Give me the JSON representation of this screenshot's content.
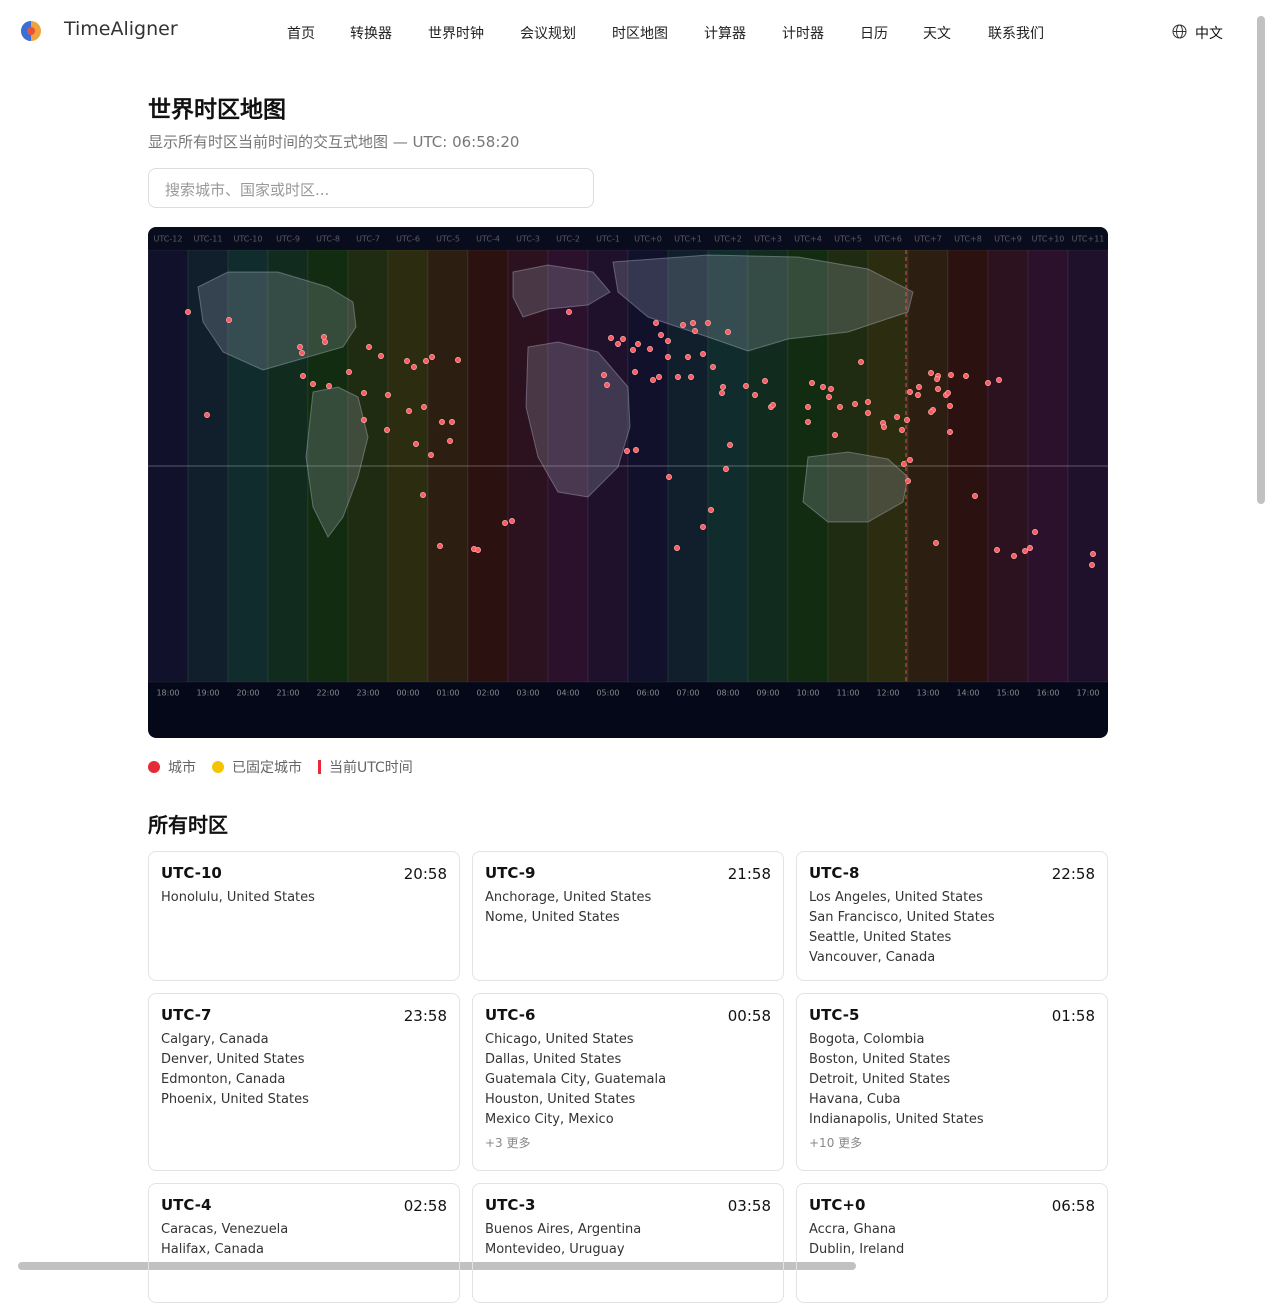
{
  "header": {
    "logo": "TimeAligner",
    "nav": [
      "首页",
      "转换器",
      "世界时钟",
      "会议规划",
      "时区地图",
      "计算器",
      "计时器",
      "日历",
      "天文",
      "联系我们"
    ],
    "language": "中文"
  },
  "page": {
    "title": "世界时区地图",
    "subtitle": "显示所有时区当前时间的交互式地图 — UTC: 06:58:20",
    "search_placeholder": "搜索城市、国家或时区..."
  },
  "map": {
    "zones": [
      "UTC-12",
      "UTC-11",
      "UTC-10",
      "UTC-9",
      "UTC-8",
      "UTC-7",
      "UTC-6",
      "UTC-5",
      "UTC-4",
      "UTC-3",
      "UTC-2",
      "UTC-1",
      "UTC+0",
      "UTC+1",
      "UTC+2",
      "UTC+3",
      "UTC+4",
      "UTC+5",
      "UTC+6",
      "UTC+7",
      "UTC+8",
      "UTC+9",
      "UTC+10",
      "UTC+11"
    ],
    "times": [
      "18:00",
      "19:00",
      "20:00",
      "21:00",
      "22:00",
      "23:00",
      "00:00",
      "01:00",
      "02:00",
      "03:00",
      "04:00",
      "05:00",
      "06:00",
      "07:00",
      "08:00",
      "09:00",
      "10:00",
      "11:00",
      "12:00",
      "13:00",
      "14:00",
      "15:00",
      "16:00",
      "17:00"
    ]
  },
  "legend": [
    "城市",
    "已固定城市",
    "当前UTC时间"
  ],
  "section_title": "所有时区",
  "cards": [
    {
      "zone": "UTC-10",
      "time": "20:58",
      "cities": [
        "Honolulu, United States"
      ]
    },
    {
      "zone": "UTC-9",
      "time": "21:58",
      "cities": [
        "Anchorage, United States",
        "Nome, United States"
      ]
    },
    {
      "zone": "UTC-8",
      "time": "22:58",
      "cities": [
        "Los Angeles, United States",
        "San Francisco, United States",
        "Seattle, United States",
        "Vancouver, Canada"
      ]
    },
    {
      "zone": "UTC-7",
      "time": "23:58",
      "cities": [
        "Calgary, Canada",
        "Denver, United States",
        "Edmonton, Canada",
        "Phoenix, United States"
      ]
    },
    {
      "zone": "UTC-6",
      "time": "00:58",
      "cities": [
        "Chicago, United States",
        "Dallas, United States",
        "Guatemala City, Guatemala",
        "Houston, United States",
        "Mexico City, Mexico"
      ],
      "more": "+3 更多"
    },
    {
      "zone": "UTC-5",
      "time": "01:58",
      "cities": [
        "Bogota, Colombia",
        "Boston, United States",
        "Detroit, United States",
        "Havana, Cuba",
        "Indianapolis, United States"
      ],
      "more": "+10 更多"
    },
    {
      "zone": "UTC-4",
      "time": "02:58",
      "cities": [
        "Caracas, Venezuela",
        "Halifax, Canada"
      ]
    },
    {
      "zone": "UTC-3",
      "time": "03:58",
      "cities": [
        "Buenos Aires, Argentina",
        "Montevideo, Uruguay"
      ]
    },
    {
      "zone": "UTC+0",
      "time": "06:58",
      "cities": [
        "Accra, Ghana",
        "Dublin, Ireland"
      ]
    }
  ]
}
